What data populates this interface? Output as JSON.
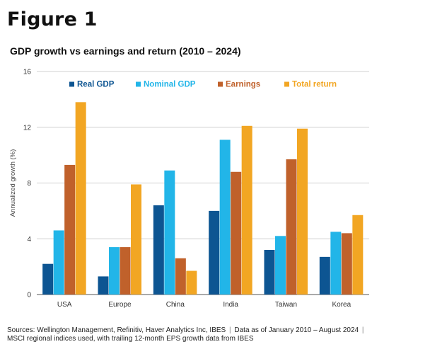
{
  "figure": {
    "label": "Figure 1"
  },
  "chart_data": {
    "type": "bar",
    "title": "GDP growth vs earnings and return (2010 – 2024)",
    "xlabel": "",
    "ylabel": "Annualized growth (%)",
    "ylim": [
      0,
      16
    ],
    "yticks": [
      0,
      4,
      8,
      12,
      16
    ],
    "grid": true,
    "legend_position": "top",
    "categories": [
      "USA",
      "Europe",
      "China",
      "India",
      "Taiwan",
      "Korea"
    ],
    "series": [
      {
        "name": "Real GDP",
        "color": "#0d5592",
        "values": [
          2.2,
          1.3,
          6.4,
          6.0,
          3.2,
          2.7
        ]
      },
      {
        "name": "Nominal GDP",
        "color": "#22b5e8",
        "values": [
          4.6,
          3.4,
          8.9,
          11.1,
          4.2,
          4.5
        ]
      },
      {
        "name": "Earnings",
        "color": "#c0612b",
        "values": [
          9.3,
          3.4,
          2.6,
          8.8,
          9.7,
          4.4
        ]
      },
      {
        "name": "Total return",
        "color": "#f2a623",
        "values": [
          13.8,
          7.9,
          1.7,
          12.1,
          11.9,
          5.7
        ]
      }
    ]
  },
  "sources": {
    "part1": "Sources: Wellington Management, Refinitiv, Haver Analytics Inc, IBES",
    "part2": "Data as of January 2010 – August 2024",
    "part3": "MSCI regional indices used, with trailing 12-month EPS growth data from IBES"
  }
}
